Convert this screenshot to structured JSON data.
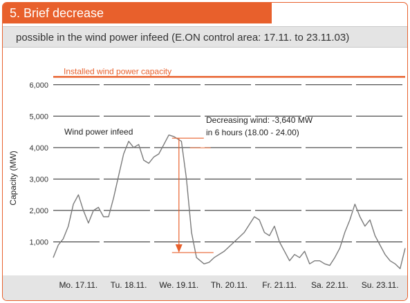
{
  "header": {
    "title": "5. Brief decrease",
    "subtitle": "possible in the wind power infeed (E.ON control area: 17.11. to 23.11.03)"
  },
  "colors": {
    "accent": "#e8602c",
    "series_line": "#7a7a7a",
    "gridline": "#222222",
    "band": "#e4e4e4"
  },
  "chart_data": {
    "type": "line",
    "title": "5. Brief decrease",
    "subtitle": "possible in the wind power infeed (E.ON control area: 17.11. to 23.11.03)",
    "xlabel": "",
    "ylabel": "Capacity (MW)",
    "ylim": [
      0,
      6500
    ],
    "xlim": [
      0,
      7
    ],
    "yticks": [
      1000,
      2000,
      3000,
      4000,
      5000,
      6000
    ],
    "ytick_labels": [
      "1,000",
      "2,000",
      "3,000",
      "4,000",
      "5,000",
      "6,000"
    ],
    "categories": [
      "Mo. 17.11.",
      "Tu. 18.11.",
      "We. 19.11.",
      "Th. 20.11.",
      "Fr. 21.11.",
      "Sa. 22.11.",
      "Su. 23.11."
    ],
    "grid": true,
    "installed_capacity": {
      "label": "Installed wind power capacity",
      "value": 6250
    },
    "series": [
      {
        "name": "Wind power infeed",
        "x": [
          0.0,
          0.1,
          0.2,
          0.3,
          0.4,
          0.5,
          0.6,
          0.7,
          0.8,
          0.9,
          1.0,
          1.1,
          1.2,
          1.3,
          1.4,
          1.5,
          1.6,
          1.7,
          1.8,
          1.9,
          2.0,
          2.1,
          2.2,
          2.3,
          2.4,
          2.45,
          2.55,
          2.65,
          2.75,
          2.85,
          3.0,
          3.1,
          3.2,
          3.4,
          3.6,
          3.8,
          4.0,
          4.1,
          4.2,
          4.3,
          4.4,
          4.5,
          4.6,
          4.7,
          4.8,
          4.9,
          5.0,
          5.1,
          5.2,
          5.3,
          5.4,
          5.5,
          5.6,
          5.7,
          5.8,
          5.9,
          6.0,
          6.1,
          6.2,
          6.3,
          6.4,
          6.5,
          6.6,
          6.7,
          6.8,
          6.9,
          7.0
        ],
        "values": [
          500,
          900,
          1100,
          1500,
          2200,
          2500,
          2000,
          1600,
          2000,
          2100,
          1800,
          1800,
          2400,
          3100,
          3800,
          4200,
          4000,
          4100,
          3600,
          3500,
          3700,
          3800,
          4100,
          4400,
          4350,
          4300,
          4200,
          3000,
          1300,
          500,
          300,
          350,
          500,
          700,
          1000,
          1300,
          1800,
          1700,
          1300,
          1200,
          1500,
          1000,
          700,
          400,
          600,
          500,
          700,
          300,
          400,
          400,
          300,
          250,
          500,
          800,
          1300,
          1700,
          2200,
          1800,
          1500,
          1700,
          1200,
          900,
          600,
          400,
          300,
          150,
          800
        ]
      }
    ],
    "annotations": [
      {
        "text_line1": "Decreasing wind: -3,640 MW",
        "text_line2": "in 6 hours (18.00 - 24.00)",
        "from": {
          "x": 2.5,
          "y": 4300
        },
        "to": {
          "x": 2.5,
          "y": 660
        }
      }
    ]
  }
}
